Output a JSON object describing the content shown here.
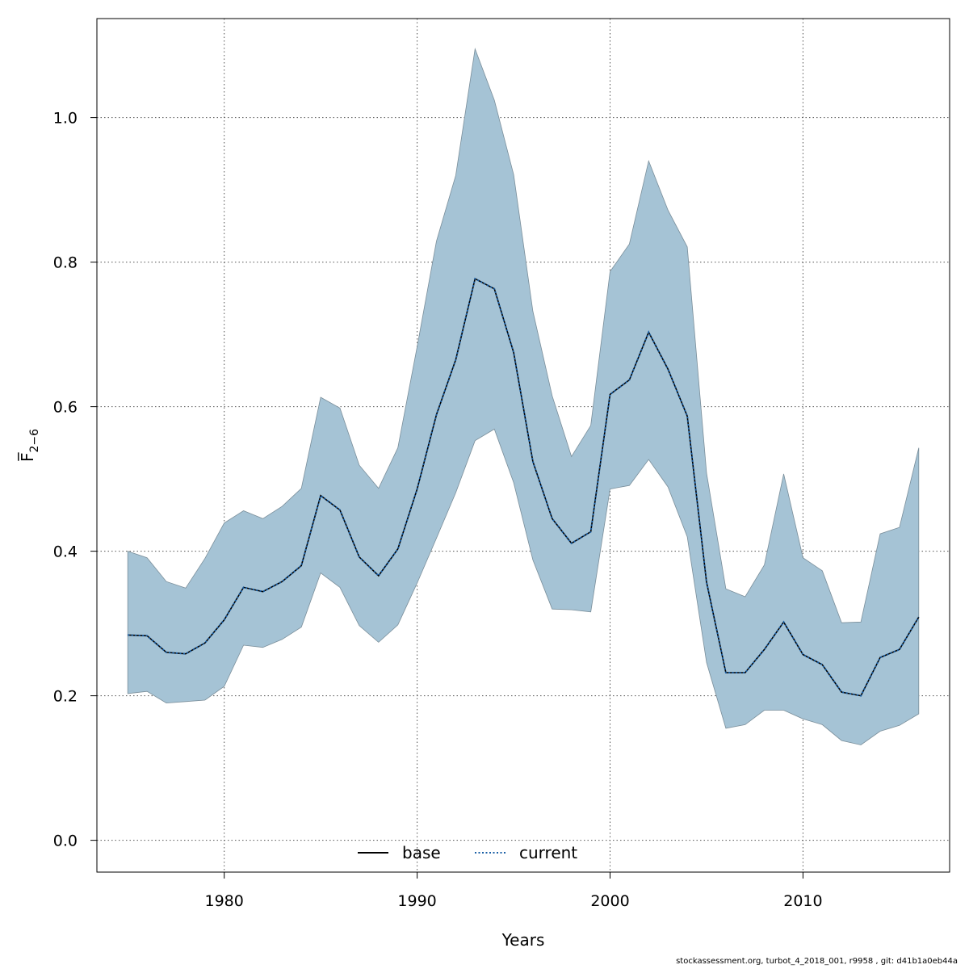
{
  "chart_data": {
    "type": "line",
    "xlabel": "Years",
    "ylabel": "F̅",
    "ylabel_sub": "2−6",
    "xlim": [
      1973.4,
      2017.6
    ],
    "ylim": [
      -0.044,
      1.137
    ],
    "xticks": [
      1980,
      1990,
      2000,
      2010
    ],
    "yticks": [
      0.0,
      0.2,
      0.4,
      0.6,
      0.8,
      1.0
    ],
    "xtick_labels": [
      "1980",
      "1990",
      "2000",
      "2010"
    ],
    "ytick_labels": [
      "0.0",
      "0.2",
      "0.4",
      "0.6",
      "0.8",
      "1.0"
    ],
    "grid": true,
    "legend_position": "bottom-center",
    "x": [
      1975,
      1976,
      1977,
      1978,
      1979,
      1980,
      1981,
      1982,
      1983,
      1984,
      1985,
      1986,
      1987,
      1988,
      1989,
      1990,
      1991,
      1992,
      1993,
      1994,
      1995,
      1996,
      1997,
      1998,
      1999,
      2000,
      2001,
      2002,
      2003,
      2004,
      2005,
      2006,
      2007,
      2008,
      2009,
      2010,
      2011,
      2012,
      2013,
      2014,
      2015,
      2016
    ],
    "band": {
      "upper": [
        0.4,
        0.391,
        0.358,
        0.349,
        0.39,
        0.439,
        0.456,
        0.445,
        0.462,
        0.487,
        0.613,
        0.598,
        0.519,
        0.487,
        0.543,
        0.683,
        0.829,
        0.92,
        1.095,
        1.024,
        0.921,
        0.732,
        0.615,
        0.531,
        0.574,
        0.787,
        0.825,
        0.94,
        0.872,
        0.821,
        0.508,
        0.348,
        0.337,
        0.381,
        0.507,
        0.391,
        0.373,
        0.301,
        0.302,
        0.424,
        0.433,
        0.543
      ],
      "lower": [
        0.203,
        0.206,
        0.19,
        0.192,
        0.194,
        0.213,
        0.27,
        0.267,
        0.278,
        0.295,
        0.37,
        0.35,
        0.297,
        0.274,
        0.298,
        0.356,
        0.418,
        0.481,
        0.553,
        0.569,
        0.495,
        0.388,
        0.32,
        0.319,
        0.316,
        0.486,
        0.491,
        0.527,
        0.489,
        0.42,
        0.246,
        0.155,
        0.16,
        0.18,
        0.18,
        0.168,
        0.16,
        0.138,
        0.132,
        0.151,
        0.159,
        0.175
      ],
      "color": "#a5c3d5",
      "edge_color": "#7a8e9a"
    },
    "series": [
      {
        "name": "base",
        "style": "solid",
        "color": "#000000",
        "values": [
          0.284,
          0.283,
          0.26,
          0.258,
          0.273,
          0.305,
          0.35,
          0.344,
          0.358,
          0.38,
          0.477,
          0.457,
          0.392,
          0.366,
          0.403,
          0.486,
          0.589,
          0.665,
          0.777,
          0.763,
          0.675,
          0.524,
          0.445,
          0.411,
          0.427,
          0.617,
          0.637,
          0.703,
          0.652,
          0.587,
          0.357,
          0.232,
          0.232,
          0.264,
          0.302,
          0.257,
          0.243,
          0.205,
          0.2,
          0.253,
          0.264,
          0.309
        ]
      },
      {
        "name": "current",
        "style": "dotted",
        "color": "#1a5fa5",
        "values": [
          0.284,
          0.283,
          0.26,
          0.258,
          0.273,
          0.305,
          0.35,
          0.344,
          0.358,
          0.38,
          0.477,
          0.457,
          0.392,
          0.366,
          0.403,
          0.486,
          0.589,
          0.665,
          0.777,
          0.763,
          0.675,
          0.524,
          0.445,
          0.411,
          0.427,
          0.617,
          0.637,
          0.703,
          0.652,
          0.587,
          0.357,
          0.232,
          0.232,
          0.264,
          0.302,
          0.257,
          0.243,
          0.205,
          0.2,
          0.253,
          0.264,
          0.309
        ]
      }
    ]
  },
  "footer": "stockassessment.org, turbot_4_2018_001, r9958 , git: d41b1a0eb44a"
}
